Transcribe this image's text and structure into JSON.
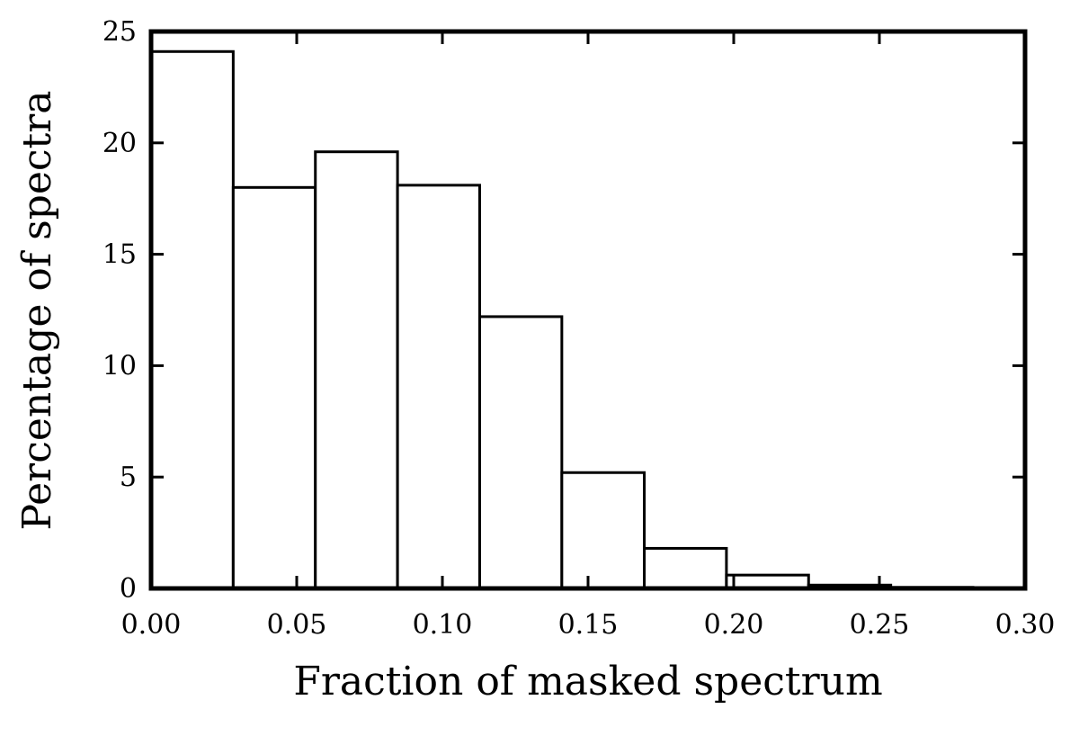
{
  "chart_data": {
    "type": "histogram",
    "xlabel": "Fraction of masked spectrum",
    "ylabel": "Percentage of spectra",
    "bins": [
      0,
      0.0282,
      0.0564,
      0.0846,
      0.1128,
      0.141,
      0.1693,
      0.1975,
      0.2257,
      0.2539,
      0.2821
    ],
    "values": [
      24.1,
      18.0,
      19.6,
      18.1,
      12.2,
      5.2,
      1.8,
      0.6,
      0.15,
      0.05
    ],
    "color": "#ffffff",
    "xlim": [
      0,
      0.3
    ],
    "ylim": [
      0,
      25
    ],
    "xticks": [
      {
        "value": 0,
        "label": "0.00"
      },
      {
        "value": 0.05,
        "label": "0.05"
      },
      {
        "value": 0.1,
        "label": "0.10"
      },
      {
        "value": 0.15,
        "label": "0.15"
      },
      {
        "value": 0.2,
        "label": "0.20"
      },
      {
        "value": 0.25,
        "label": "0.25"
      },
      {
        "value": 0.3,
        "label": "0.30"
      }
    ],
    "yticks": [
      0,
      5,
      10,
      15,
      20,
      25
    ],
    "grid": false
  }
}
